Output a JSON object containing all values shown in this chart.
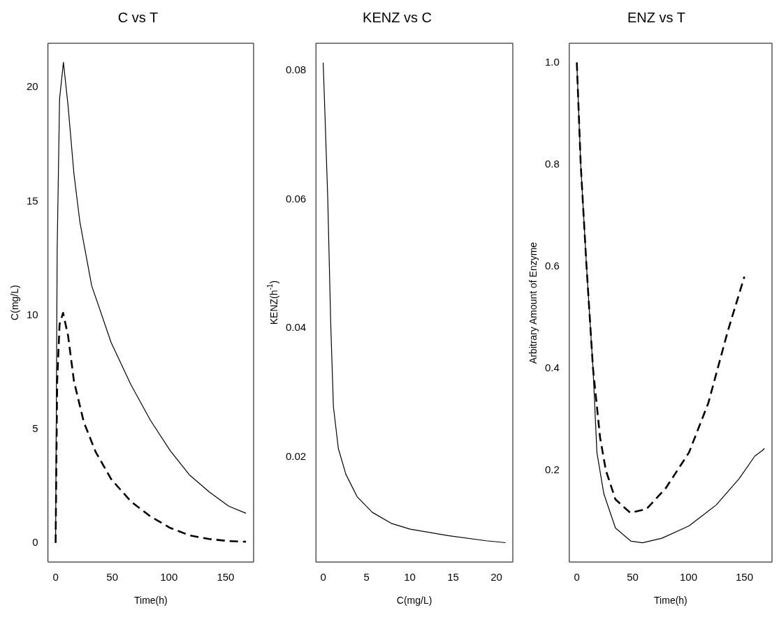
{
  "chart_data": [
    {
      "type": "line",
      "title": "C vs T",
      "xlabel": "Time(h)",
      "ylabel": "C(mg/L)",
      "xlim": [
        -6.72,
        174.72
      ],
      "ylim": [
        -0.84,
        21.94
      ],
      "xticks": [
        0,
        50,
        100,
        150
      ],
      "yticks": [
        0,
        5,
        10,
        15,
        20
      ],
      "grid": false,
      "legend": false,
      "marker": "none",
      "series": [
        {
          "color": "#000000",
          "line_style": "solid",
          "x": [
            0,
            1.4,
            3.5,
            6.9,
            11,
            16.2,
            21.4,
            31.8,
            49,
            66.4,
            83.7,
            101,
            118.2,
            135.5,
            152.8,
            168
          ],
          "values": [
            0,
            12.9,
            19.5,
            21.1,
            19.2,
            16.2,
            14.1,
            11.3,
            8.8,
            6.95,
            5.38,
            4.06,
            2.98,
            2.24,
            1.61,
            1.3
          ]
        },
        {
          "color": "#000000",
          "line_style": "dashed",
          "x": [
            0,
            1.4,
            3.5,
            6.6,
            11,
            16.2,
            24.9,
            35.3,
            49,
            66.4,
            83.7,
            101,
            118.2,
            135.5,
            152.8,
            168
          ],
          "values": [
            0,
            7.1,
            9.6,
            10.1,
            9.1,
            7.1,
            5.3,
            4.0,
            2.8,
            1.82,
            1.16,
            0.66,
            0.33,
            0.17,
            0.08,
            0.05
          ]
        }
      ]
    },
    {
      "type": "line",
      "title": "KENZ vs C",
      "xlabel": "C(mg/L)",
      "ylabel": "KENZ(h$^{-1}$)",
      "xlim": [
        -0.84,
        21.89
      ],
      "ylim": [
        0.0037,
        0.0842
      ],
      "xticks": [
        0,
        5,
        10,
        15,
        20
      ],
      "yticks": [
        0.02,
        0.04,
        0.06,
        0.08
      ],
      "grid": false,
      "legend": false,
      "marker": "none",
      "series": [
        {
          "color": "#000000",
          "line_style": "solid",
          "x": [
            0,
            0.52,
            0.87,
            1.18,
            1.75,
            2.62,
            3.93,
            5.68,
            7.86,
            10.04,
            14.4,
            18.8,
            21.05
          ],
          "values": [
            0.0812,
            0.0604,
            0.0406,
            0.0278,
            0.0213,
            0.0173,
            0.0138,
            0.0114,
            0.0097,
            0.0088,
            0.0078,
            0.007,
            0.0067
          ]
        }
      ]
    },
    {
      "type": "line",
      "title": "ENZ vs T",
      "xlabel": "Time(h)",
      "ylabel": "Arbitrary Amount of Enzyme",
      "xlim": [
        -6.72,
        174.72
      ],
      "ylim": [
        0.0203,
        1.0377
      ],
      "xticks": [
        0,
        50,
        100,
        150
      ],
      "yticks": [
        0.2,
        0.4,
        0.6,
        0.8,
        {
          "value": 1.0,
          "label": "1.0"
        }
      ],
      "grid": false,
      "legend": false,
      "marker": "none",
      "series": [
        {
          "color": "#000000",
          "line_style": "solid",
          "x": [
            0,
            3.5,
            8.7,
            14.5,
            18,
            24.2,
            34.6,
            48.5,
            58.9,
            76.2,
            100.4,
            124.7,
            145.4,
            159.3,
            166,
            168
          ],
          "values": [
            1.0,
            0.8,
            0.6,
            0.4,
            0.235,
            0.154,
            0.087,
            0.061,
            0.058,
            0.067,
            0.091,
            0.132,
            0.184,
            0.228,
            0.239,
            0.243
          ]
        },
        {
          "color": "#000000",
          "line_style": "dashed",
          "x": [
            0,
            3.5,
            8.7,
            14.5,
            20.8,
            26,
            34.6,
            47.8,
            62.3,
            79.6,
            100.4,
            117.7,
            135,
            150
          ],
          "values": [
            1.0,
            0.8,
            0.6,
            0.4,
            0.265,
            0.2,
            0.143,
            0.117,
            0.124,
            0.165,
            0.235,
            0.332,
            0.472,
            0.58
          ]
        }
      ]
    }
  ]
}
